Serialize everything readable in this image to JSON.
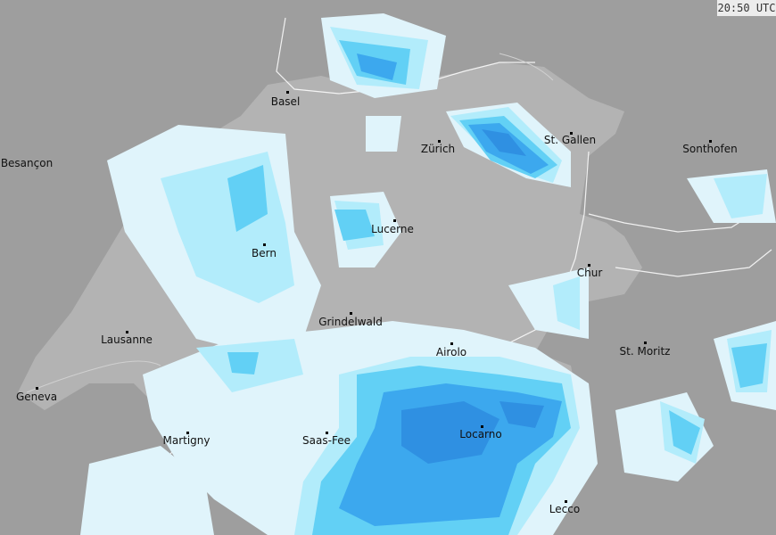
{
  "timestamp": "20:50 UTC",
  "colors": {
    "outside": "#9e9e9e",
    "switzerland": "#b3b3b3",
    "precip_very_light": "#e0f4fb",
    "precip_light": "#b2ecfb",
    "precip_moderate": "#62d0f5",
    "precip_heavy": "#3ca8ee",
    "precip_very_heavy": "#2b88de"
  },
  "cities": [
    {
      "name": "Basel"
    },
    {
      "name": "Besançon"
    },
    {
      "name": "Zürich"
    },
    {
      "name": "St. Gallen"
    },
    {
      "name": "Sonthofen"
    },
    {
      "name": "Lucerne"
    },
    {
      "name": "Bern"
    },
    {
      "name": "Chur"
    },
    {
      "name": "Grindelwald"
    },
    {
      "name": "Lausanne"
    },
    {
      "name": "Airolo"
    },
    {
      "name": "St. Moritz"
    },
    {
      "name": "Geneva"
    },
    {
      "name": "Martigny"
    },
    {
      "name": "Saas-Fee"
    },
    {
      "name": "Locarno"
    },
    {
      "name": "Lecco"
    }
  ]
}
